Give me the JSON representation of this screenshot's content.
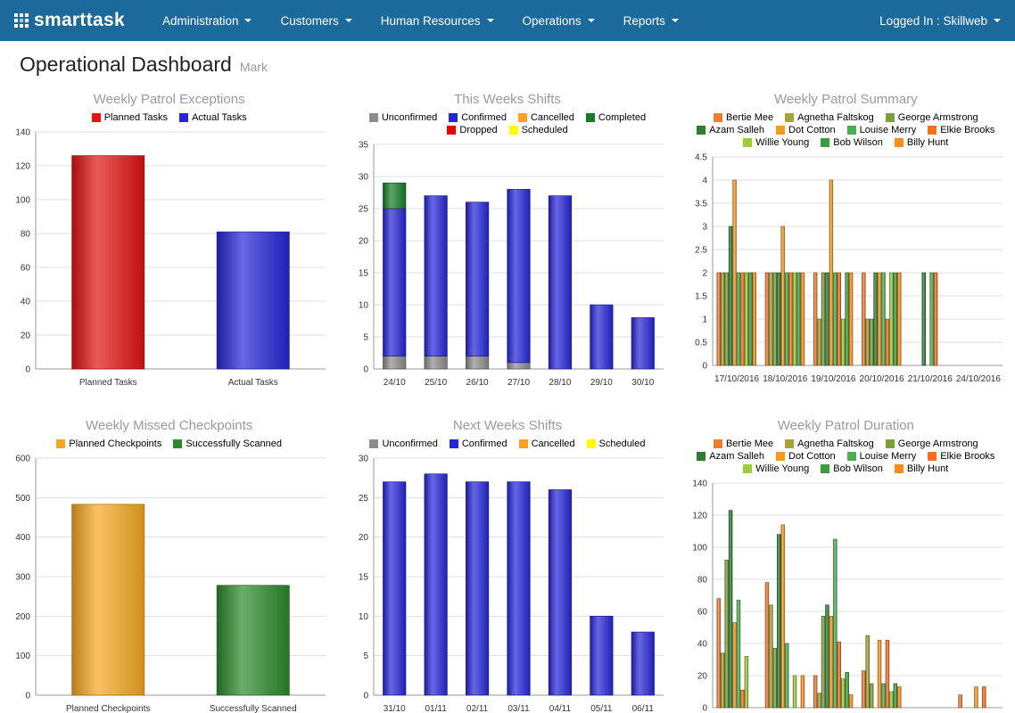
{
  "theme": {
    "navbar_color": "#1b6a9b",
    "title_color": "#9a9a9a"
  },
  "navbar": {
    "brand": "smarttask",
    "menus": [
      {
        "label": "Administration"
      },
      {
        "label": "Customers"
      },
      {
        "label": "Human Resources"
      },
      {
        "label": "Operations"
      },
      {
        "label": "Reports"
      }
    ],
    "logged_in": "Logged In : Skillweb"
  },
  "page": {
    "title": "Operational Dashboard",
    "subtitle": "Mark"
  },
  "chart_data": [
    {
      "title": "Weekly Patrol Exceptions",
      "type": "bar",
      "legend": [
        {
          "label": "Planned Tasks",
          "color": "#e11313"
        },
        {
          "label": "Actual Tasks",
          "color": "#2626d8"
        }
      ],
      "categories": [
        "Planned Tasks",
        "Actual Tasks"
      ],
      "values": [
        126,
        81
      ],
      "colors": [
        "#e11313",
        "#2626d8"
      ],
      "ylim": [
        0,
        140
      ],
      "ystep": 20
    },
    {
      "title": "This Weeks Shifts",
      "type": "stacked-bar",
      "legend": [
        {
          "label": "Unconfirmed",
          "color": "#8c8c8c"
        },
        {
          "label": "Confirmed",
          "color": "#2626d8"
        },
        {
          "label": "Cancelled",
          "color": "#ffa01e"
        },
        {
          "label": "Completed",
          "color": "#177d29"
        },
        {
          "label": "Dropped",
          "color": "#e60000"
        },
        {
          "label": "Scheduled",
          "color": "#ffff00"
        }
      ],
      "categories": [
        "24/10",
        "25/10",
        "26/10",
        "27/10",
        "28/10",
        "29/10",
        "30/10"
      ],
      "series": [
        {
          "name": "Unconfirmed",
          "color": "#8c8c8c",
          "values": [
            2,
            2,
            2,
            1,
            0,
            0,
            0
          ]
        },
        {
          "name": "Confirmed",
          "color": "#2626d8",
          "values": [
            23,
            25,
            24,
            27,
            27,
            10,
            8
          ]
        },
        {
          "name": "Completed",
          "color": "#177d29",
          "values": [
            4,
            0,
            0,
            0,
            0,
            0,
            0
          ]
        }
      ],
      "ylim": [
        0,
        35
      ],
      "ystep": 5
    },
    {
      "title": "Weekly Patrol Summary",
      "type": "grouped-bar",
      "legend": [
        {
          "label": "Bertie Mee",
          "color": "#ed7d31"
        },
        {
          "label": "Agnetha Faltskog",
          "color": "#a6a437"
        },
        {
          "label": "George Armstrong",
          "color": "#7ca03c"
        },
        {
          "label": "Azam Salleh",
          "color": "#2e7d32"
        },
        {
          "label": "Dot Cotton",
          "color": "#f59a23"
        },
        {
          "label": "Louise Merry",
          "color": "#4caf50"
        },
        {
          "label": "Elkie Brooks",
          "color": "#f2711c"
        },
        {
          "label": "Willie Young",
          "color": "#9ccc3c"
        },
        {
          "label": "Bob Wilson",
          "color": "#3c9c3c"
        },
        {
          "label": "Billy Hunt",
          "color": "#ff8c1a"
        }
      ],
      "categories": [
        "17/10/2016",
        "18/10/2016",
        "19/10/2016",
        "20/10/2016",
        "21/10/2016",
        "24/10/2016"
      ],
      "series": [
        {
          "name": "Bertie Mee",
          "color": "#ed7d31",
          "values": [
            2,
            2,
            2,
            2,
            0,
            0
          ]
        },
        {
          "name": "Agnetha Faltskog",
          "color": "#a6a437",
          "values": [
            2,
            2,
            1,
            1,
            0,
            0
          ]
        },
        {
          "name": "George Armstrong",
          "color": "#7ca03c",
          "values": [
            2,
            2,
            2,
            1,
            0,
            0
          ]
        },
        {
          "name": "Azam Salleh",
          "color": "#2e7d32",
          "values": [
            3,
            2,
            2,
            2,
            2,
            0
          ]
        },
        {
          "name": "Dot Cotton",
          "color": "#f59a23",
          "values": [
            4,
            3,
            4,
            2,
            0,
            0
          ]
        },
        {
          "name": "Louise Merry",
          "color": "#4caf50",
          "values": [
            2,
            2,
            2,
            2,
            2,
            0
          ]
        },
        {
          "name": "Elkie Brooks",
          "color": "#f2711c",
          "values": [
            2,
            2,
            2,
            1,
            2,
            0
          ]
        },
        {
          "name": "Willie Young",
          "color": "#9ccc3c",
          "values": [
            2,
            2,
            1,
            2,
            0,
            0
          ]
        },
        {
          "name": "Bob Wilson",
          "color": "#3c9c3c",
          "values": [
            2,
            2,
            2,
            2,
            0,
            0
          ]
        },
        {
          "name": "Billy Hunt",
          "color": "#ff8c1a",
          "values": [
            2,
            2,
            2,
            2,
            0,
            0
          ]
        }
      ],
      "ylim": [
        0,
        4.5
      ],
      "ystep": 0.5
    },
    {
      "title": "Weekly Missed Checkpoints",
      "type": "bar",
      "legend": [
        {
          "label": "Planned Checkpoints",
          "color": "#f6a821"
        },
        {
          "label": "Successfully Scanned",
          "color": "#2c8a2c"
        }
      ],
      "categories": [
        "Planned Checkpoints",
        "Successfully Scanned"
      ],
      "values": [
        483,
        278
      ],
      "colors": [
        "#f6a821",
        "#2c8a2c"
      ],
      "ylim": [
        0,
        600
      ],
      "ystep": 100
    },
    {
      "title": "Next Weeks Shifts",
      "type": "stacked-bar",
      "legend": [
        {
          "label": "Unconfirmed",
          "color": "#8c8c8c"
        },
        {
          "label": "Confirmed",
          "color": "#2626d8"
        },
        {
          "label": "Cancelled",
          "color": "#ffa01e"
        },
        {
          "label": "Scheduled",
          "color": "#ffff00"
        }
      ],
      "categories": [
        "31/10",
        "01/11",
        "02/11",
        "03/11",
        "04/11",
        "05/11",
        "06/11"
      ],
      "series": [
        {
          "name": "Confirmed",
          "color": "#2626d8",
          "values": [
            27,
            28,
            27,
            27,
            26,
            10,
            8
          ]
        }
      ],
      "ylim": [
        0,
        30
      ],
      "ystep": 5
    },
    {
      "title": "Weekly Patrol Duration",
      "type": "grouped-bar",
      "legend": [
        {
          "label": "Bertie Mee",
          "color": "#ed7d31"
        },
        {
          "label": "Agnetha Faltskog",
          "color": "#a6a437"
        },
        {
          "label": "George Armstrong",
          "color": "#7ca03c"
        },
        {
          "label": "Azam Salleh",
          "color": "#2e7d32"
        },
        {
          "label": "Dot Cotton",
          "color": "#f59a23"
        },
        {
          "label": "Louise Merry",
          "color": "#4caf50"
        },
        {
          "label": "Elkie Brooks",
          "color": "#f2711c"
        },
        {
          "label": "Willie Young",
          "color": "#9ccc3c"
        },
        {
          "label": "Bob Wilson",
          "color": "#3c9c3c"
        },
        {
          "label": "Billy Hunt",
          "color": "#ff8c1a"
        }
      ],
      "categories": [
        "17/10/2016",
        "18/10/2016",
        "19/10/2016",
        "20/10/2016",
        "21/10/2016",
        "24/10/2016"
      ],
      "series": [
        {
          "name": "Bertie Mee",
          "color": "#ed7d31",
          "values": [
            68,
            78,
            20,
            23,
            0,
            8
          ]
        },
        {
          "name": "Agnetha Faltskog",
          "color": "#a6a437",
          "values": [
            34,
            64,
            9,
            45,
            0,
            0
          ]
        },
        {
          "name": "George Armstrong",
          "color": "#7ca03c",
          "values": [
            92,
            37,
            57,
            15,
            0,
            0
          ]
        },
        {
          "name": "Azam Salleh",
          "color": "#2e7d32",
          "values": [
            123,
            108,
            64,
            0,
            0,
            0
          ]
        },
        {
          "name": "Dot Cotton",
          "color": "#f59a23",
          "values": [
            53,
            114,
            57,
            42,
            0,
            13
          ]
        },
        {
          "name": "Louise Merry",
          "color": "#4caf50",
          "values": [
            67,
            40,
            105,
            15,
            0,
            0
          ]
        },
        {
          "name": "Elkie Brooks",
          "color": "#f2711c",
          "values": [
            11,
            0,
            41,
            42,
            0,
            13
          ]
        },
        {
          "name": "Willie Young",
          "color": "#9ccc3c",
          "values": [
            32,
            20,
            18,
            10,
            0,
            0
          ]
        },
        {
          "name": "Bob Wilson",
          "color": "#3c9c3c",
          "values": [
            0,
            0,
            22,
            15,
            0,
            0
          ]
        },
        {
          "name": "Billy Hunt",
          "color": "#ff8c1a",
          "values": [
            0,
            20,
            8,
            13,
            0,
            0
          ]
        }
      ],
      "ylim": [
        0,
        140
      ],
      "ystep": 20
    }
  ]
}
